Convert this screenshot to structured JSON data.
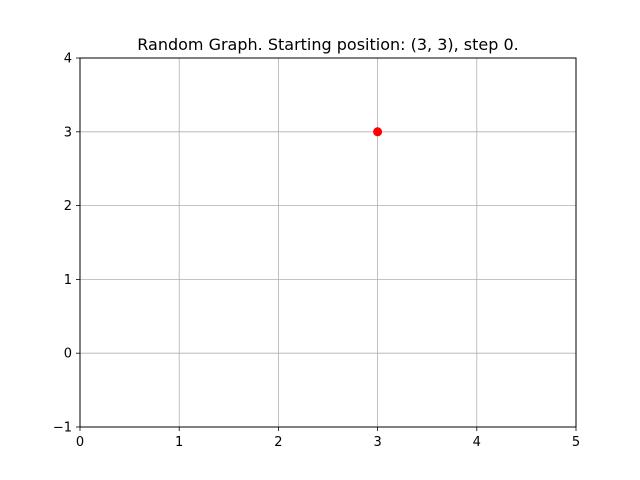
{
  "chart_data": {
    "type": "scatter",
    "title": "Random Graph. Starting position: (3, 3), step 0.",
    "xlabel": "",
    "ylabel": "",
    "xlim": [
      0,
      5
    ],
    "ylim": [
      -1,
      4
    ],
    "xticks": [
      0,
      1,
      2,
      3,
      4,
      5
    ],
    "yticks": [
      -1,
      0,
      1,
      2,
      3,
      4
    ],
    "xtick_labels": [
      "0",
      "1",
      "2",
      "3",
      "4",
      "5"
    ],
    "ytick_labels": [
      "−1",
      "0",
      "1",
      "2",
      "3",
      "4"
    ],
    "grid": true,
    "points": [
      {
        "x": 3,
        "y": 3,
        "color": "#ff0000"
      }
    ]
  },
  "colors": {
    "grid": "#b0b0b0",
    "axes": "#000000",
    "marker": "#ff0000"
  }
}
